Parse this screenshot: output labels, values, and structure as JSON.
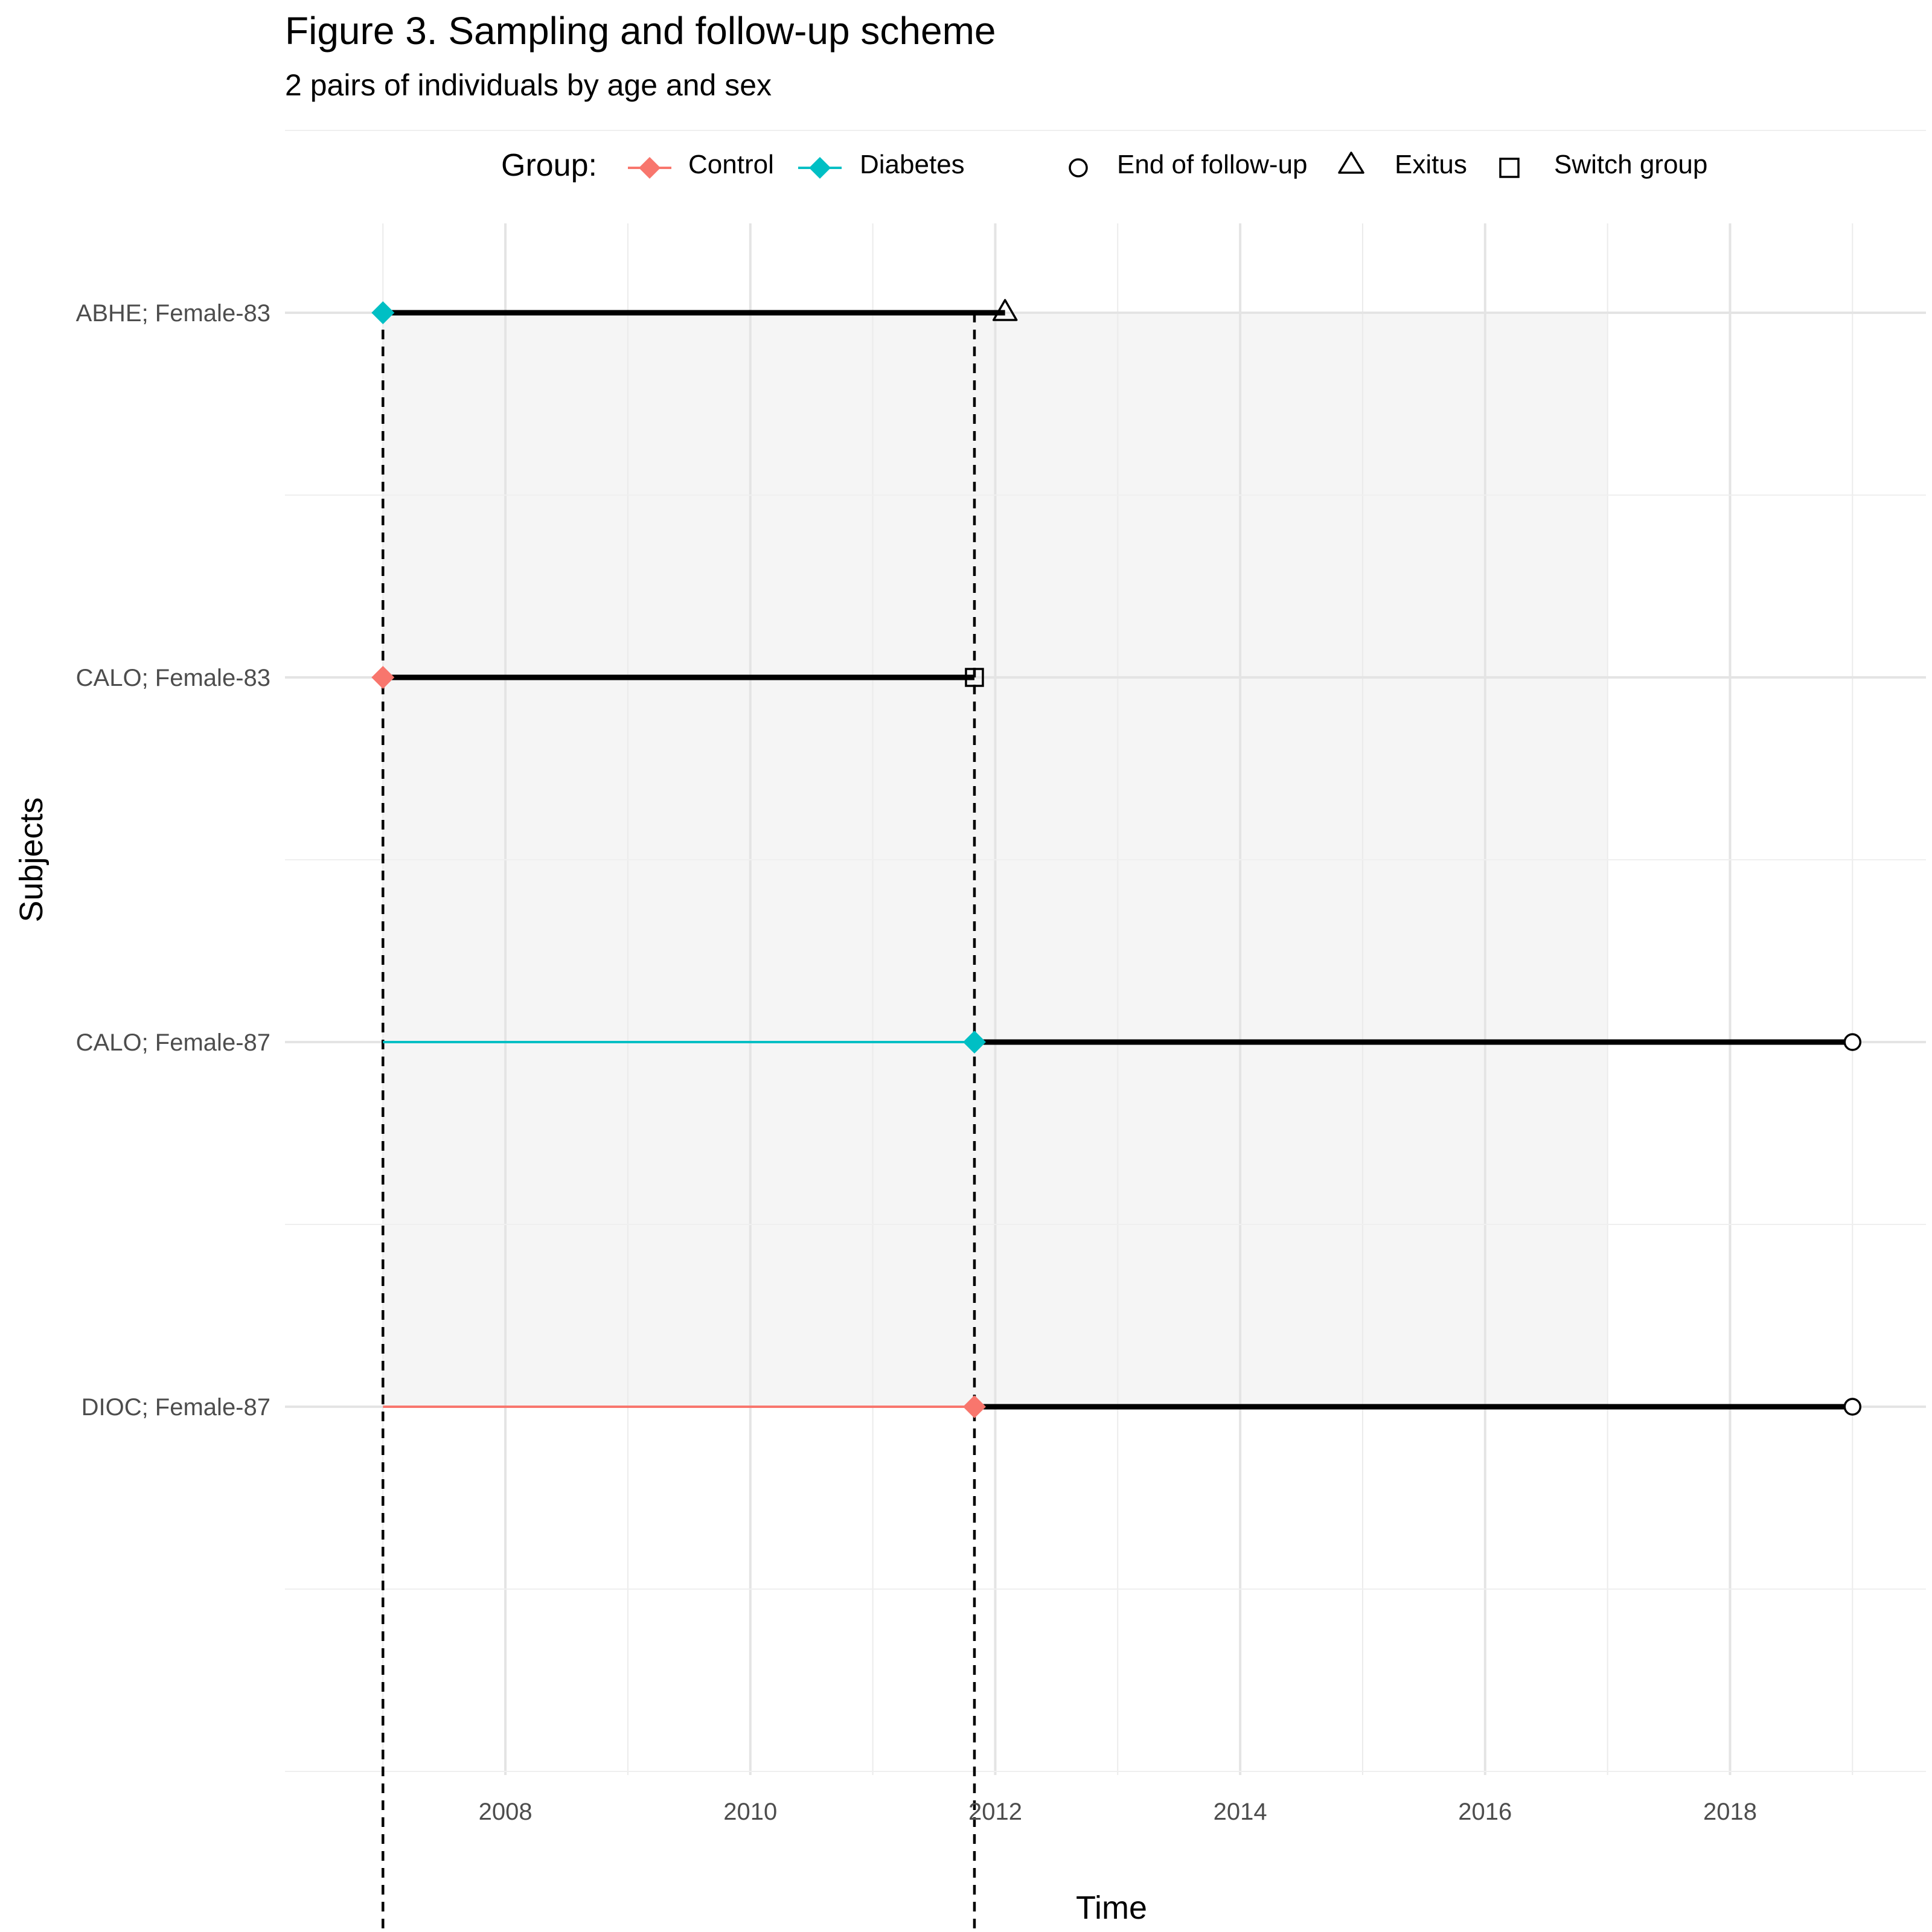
{
  "title": "Figure 3. Sampling and follow-up scheme",
  "subtitle": "2 pairs of individuals by age and sex",
  "legend": {
    "group_title": "Group:",
    "groups": [
      {
        "label": "Control",
        "color": "#F8766D"
      },
      {
        "label": "Diabetes",
        "color": "#00BFC4"
      }
    ],
    "events": [
      {
        "label": "End of follow-up",
        "shape": "circle"
      },
      {
        "label": "Exitus",
        "shape": "triangle"
      },
      {
        "label": "Switch group",
        "shape": "square"
      }
    ]
  },
  "chart_data": {
    "type": "timeline",
    "xlabel": "Time",
    "ylabel": "Subjects",
    "xlim": [
      2006.2,
      2019.6
    ],
    "x_ticks": [
      2008,
      2010,
      2012,
      2014,
      2016,
      2018
    ],
    "x_minor_ticks": [
      2007,
      2009,
      2011,
      2013,
      2015,
      2017,
      2019
    ],
    "grid": true,
    "colors": {
      "Control": "#F8766D",
      "Diabetes": "#00BFC4",
      "followup": "#000000",
      "shade": "#F5F5F5"
    },
    "shaded_region": {
      "x": [
        2007,
        2017
      ]
    },
    "vertical_dashed_lines": [
      2007,
      2011.83
    ],
    "subjects": [
      {
        "label": "ABHE; Female-83",
        "group": "Diabetes",
        "pre_start": null,
        "start": 2007,
        "end": 2012.08,
        "end_event": "Exitus"
      },
      {
        "label": "CALO; Female-83",
        "group": "Control",
        "pre_start": null,
        "start": 2007,
        "end": 2011.83,
        "end_event": "Switch group"
      },
      {
        "label": "CALO; Female-87",
        "group": "Diabetes",
        "pre_start": 2007,
        "start": 2011.83,
        "end": 2019,
        "end_event": "End of follow-up"
      },
      {
        "label": "DIOC; Female-87",
        "group": "Control",
        "pre_start": 2007,
        "start": 2011.83,
        "end": 2019,
        "end_event": "End of follow-up"
      }
    ],
    "annotation": {
      "text": "End of follow-up",
      "x": 2018,
      "y_slot": 4.5
    }
  }
}
